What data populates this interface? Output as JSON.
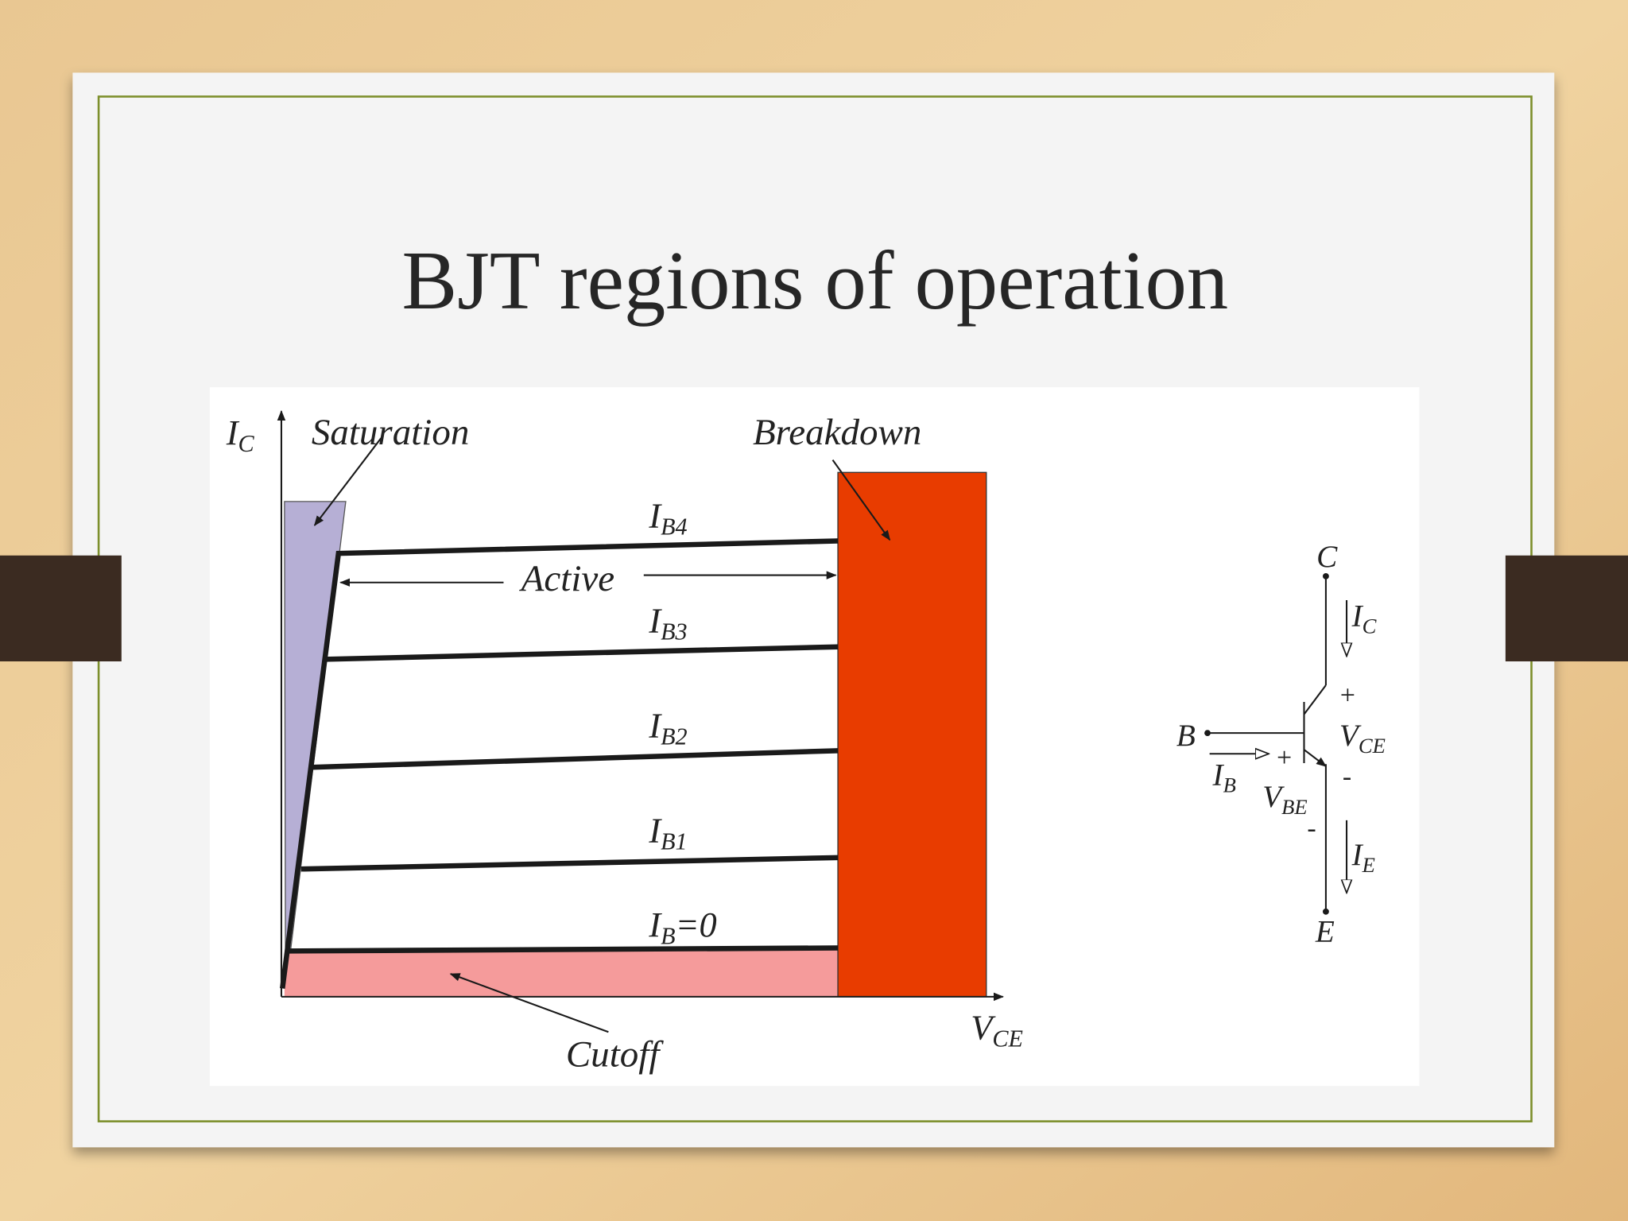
{
  "slide": {
    "title": "BJT regions of operation"
  },
  "diagram": {
    "y_axis": {
      "symbol": "I",
      "subscript": "C"
    },
    "x_axis": {
      "symbol": "V",
      "subscript": "CE"
    },
    "regions": {
      "saturation": "Saturation",
      "breakdown": "Breakdown",
      "active": "Active",
      "cutoff": "Cutoff"
    },
    "curves": [
      {
        "symbol": "I",
        "subscript": "B4"
      },
      {
        "symbol": "I",
        "subscript": "B3"
      },
      {
        "symbol": "I",
        "subscript": "B2"
      },
      {
        "symbol": "I",
        "subscript": "B1"
      },
      {
        "symbol": "I",
        "subscript": "B",
        "suffix": "=0"
      }
    ]
  },
  "circuit": {
    "collector": "C",
    "base": "B",
    "emitter": "E",
    "collector_current": {
      "symbol": "I",
      "subscript": "C"
    },
    "base_current": {
      "symbol": "I",
      "subscript": "B"
    },
    "emitter_current": {
      "symbol": "I",
      "subscript": "E"
    },
    "vce": {
      "symbol": "V",
      "subscript": "CE",
      "plus": "+",
      "minus": "-"
    },
    "vbe": {
      "symbol": "V",
      "subscript": "BE",
      "plus": "+",
      "minus": "-"
    }
  }
}
